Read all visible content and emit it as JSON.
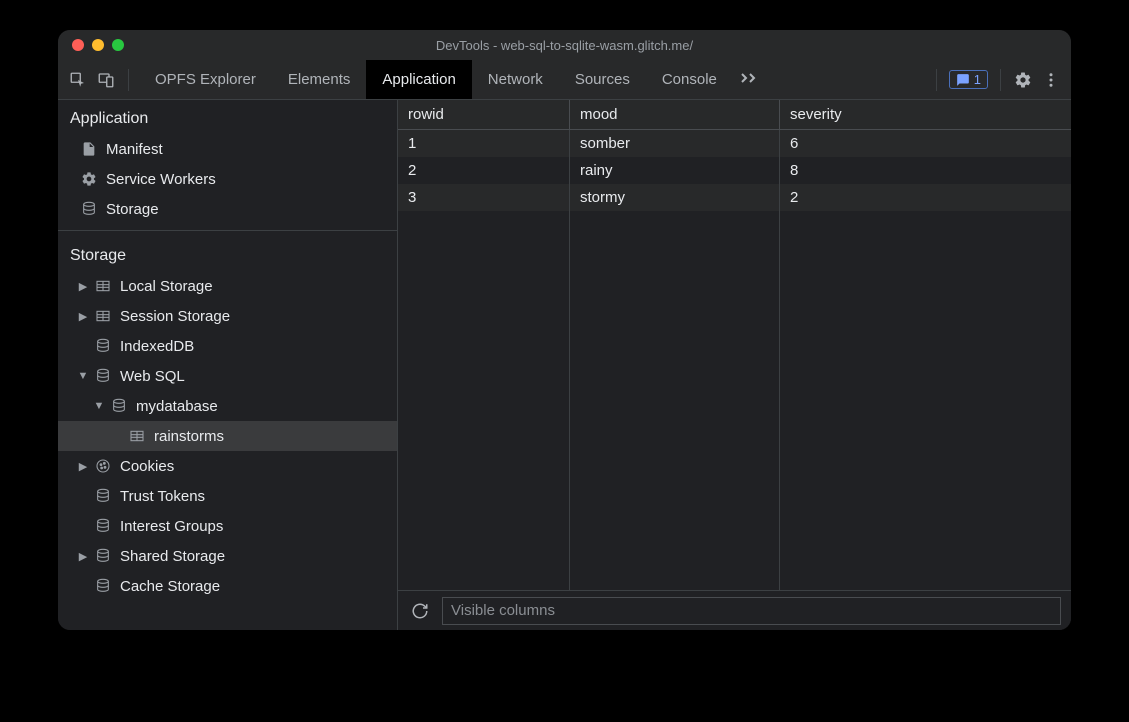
{
  "window": {
    "title": "DevTools - web-sql-to-sqlite-wasm.glitch.me/"
  },
  "tabs": {
    "items": [
      "OPFS Explorer",
      "Elements",
      "Application",
      "Network",
      "Sources",
      "Console"
    ],
    "active_index": 2
  },
  "badge": {
    "count": "1"
  },
  "sidebar": {
    "section_app": {
      "title": "Application",
      "items": [
        {
          "label": "Manifest",
          "icon": "file"
        },
        {
          "label": "Service Workers",
          "icon": "gear"
        },
        {
          "label": "Storage",
          "icon": "db"
        }
      ]
    },
    "section_storage": {
      "title": "Storage",
      "items": [
        {
          "label": "Local Storage",
          "icon": "table",
          "arrow": "right",
          "indent": 1
        },
        {
          "label": "Session Storage",
          "icon": "table",
          "arrow": "right",
          "indent": 1
        },
        {
          "label": "IndexedDB",
          "icon": "db",
          "arrow": "blank",
          "indent": 1
        },
        {
          "label": "Web SQL",
          "icon": "db",
          "arrow": "down",
          "indent": 1
        },
        {
          "label": "mydatabase",
          "icon": "db",
          "arrow": "down",
          "indent": 2
        },
        {
          "label": "rainstorms",
          "icon": "table",
          "arrow": "blank",
          "indent": 3,
          "selected": true
        },
        {
          "label": "Cookies",
          "icon": "cookie",
          "arrow": "right",
          "indent": 1
        },
        {
          "label": "Trust Tokens",
          "icon": "db",
          "arrow": "blank",
          "indent": 1
        },
        {
          "label": "Interest Groups",
          "icon": "db",
          "arrow": "blank",
          "indent": 1
        },
        {
          "label": "Shared Storage",
          "icon": "db",
          "arrow": "right",
          "indent": 1
        },
        {
          "label": "Cache Storage",
          "icon": "db",
          "arrow": "blank",
          "indent": 1
        }
      ]
    }
  },
  "table": {
    "columns": [
      "rowid",
      "mood",
      "severity"
    ],
    "rows": [
      [
        "1",
        "somber",
        "6"
      ],
      [
        "2",
        "rainy",
        "8"
      ],
      [
        "3",
        "stormy",
        "2"
      ]
    ]
  },
  "footer": {
    "filter_placeholder": "Visible columns"
  },
  "colors": {
    "bg": "#202124",
    "panel": "#28292a",
    "border": "#3c4043",
    "text": "#e8eaed",
    "muted": "#b0b4b9",
    "accent": "#7aa2ff"
  }
}
